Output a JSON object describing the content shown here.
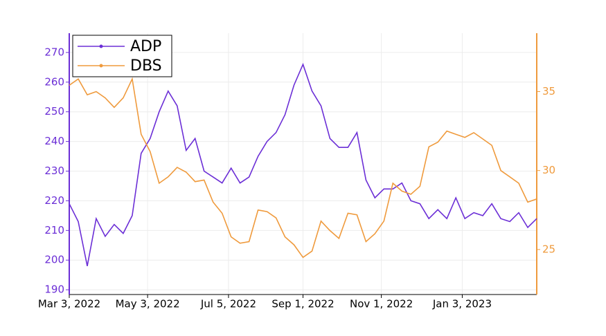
{
  "chart_data": {
    "type": "line",
    "x": [
      "2022-03-03",
      "2022-03-10",
      "2022-03-17",
      "2022-03-24",
      "2022-03-31",
      "2022-04-07",
      "2022-04-14",
      "2022-04-21",
      "2022-04-28",
      "2022-05-05",
      "2022-05-12",
      "2022-05-19",
      "2022-05-26",
      "2022-06-02",
      "2022-06-09",
      "2022-06-16",
      "2022-06-23",
      "2022-06-30",
      "2022-07-07",
      "2022-07-14",
      "2022-07-21",
      "2022-07-28",
      "2022-08-04",
      "2022-08-11",
      "2022-08-18",
      "2022-08-25",
      "2022-09-01",
      "2022-09-08",
      "2022-09-15",
      "2022-09-22",
      "2022-09-29",
      "2022-10-06",
      "2022-10-13",
      "2022-10-20",
      "2022-10-27",
      "2022-11-03",
      "2022-11-10",
      "2022-11-17",
      "2022-11-24",
      "2022-12-01",
      "2022-12-08",
      "2022-12-15",
      "2022-12-22",
      "2022-12-29",
      "2023-01-05",
      "2023-01-12",
      "2023-01-19",
      "2023-01-26",
      "2023-02-02",
      "2023-02-09",
      "2023-02-16",
      "2023-02-23",
      "2023-03-02"
    ],
    "series": [
      {
        "name": "ADP",
        "color": "#6b2ed6",
        "values": [
          219,
          213,
          198,
          214,
          208,
          212,
          209,
          215,
          236,
          241,
          250,
          257,
          252,
          237,
          241,
          230,
          228,
          226,
          231,
          226,
          228,
          235,
          240,
          243,
          249,
          259,
          266,
          257,
          252,
          241,
          238,
          238,
          243,
          227,
          221,
          224,
          224,
          226,
          220,
          219,
          214,
          217,
          214,
          221,
          214,
          216,
          215,
          219,
          214,
          213,
          216,
          211,
          214
        ]
      },
      {
        "name": "DBS",
        "color": "#ef9a3c",
        "axis": "y2",
        "values": [
          35.4,
          35.8,
          34.8,
          35.0,
          34.6,
          34.0,
          34.6,
          35.8,
          32.3,
          31.2,
          29.2,
          29.6,
          30.2,
          29.9,
          29.3,
          29.4,
          28.0,
          27.3,
          25.8,
          25.4,
          25.5,
          27.5,
          27.4,
          27.0,
          25.8,
          25.3,
          24.5,
          24.9,
          26.8,
          26.2,
          25.7,
          27.3,
          27.2,
          25.5,
          26.0,
          26.8,
          29.2,
          28.7,
          28.5,
          29.0,
          31.5,
          31.8,
          32.5,
          32.3,
          32.1,
          32.4,
          32.0,
          31.6,
          30.0,
          29.6,
          29.2,
          28.0,
          28.2
        ]
      }
    ],
    "xlim": [
      "2022-03-03",
      "2023-03-02"
    ],
    "xticks": [
      {
        "value": "2022-03-03",
        "label": "Mar 3, 2022"
      },
      {
        "value": "2022-05-03",
        "label": "May 3, 2022"
      },
      {
        "value": "2022-07-05",
        "label": "Jul 5, 2022"
      },
      {
        "value": "2022-09-01",
        "label": "Sep 1, 2022"
      },
      {
        "value": "2022-11-01",
        "label": "Nov 1, 2022"
      },
      {
        "value": "2023-01-03",
        "label": "Jan 3, 2023"
      }
    ],
    "ylim": [
      188.4,
      276.5
    ],
    "yticks": [
      190,
      200,
      210,
      220,
      230,
      240,
      250,
      260,
      270
    ],
    "y2lim": [
      22.15,
      38.7
    ],
    "y2ticks": [
      25,
      30,
      35
    ],
    "grid": true,
    "legend": "upper left"
  }
}
